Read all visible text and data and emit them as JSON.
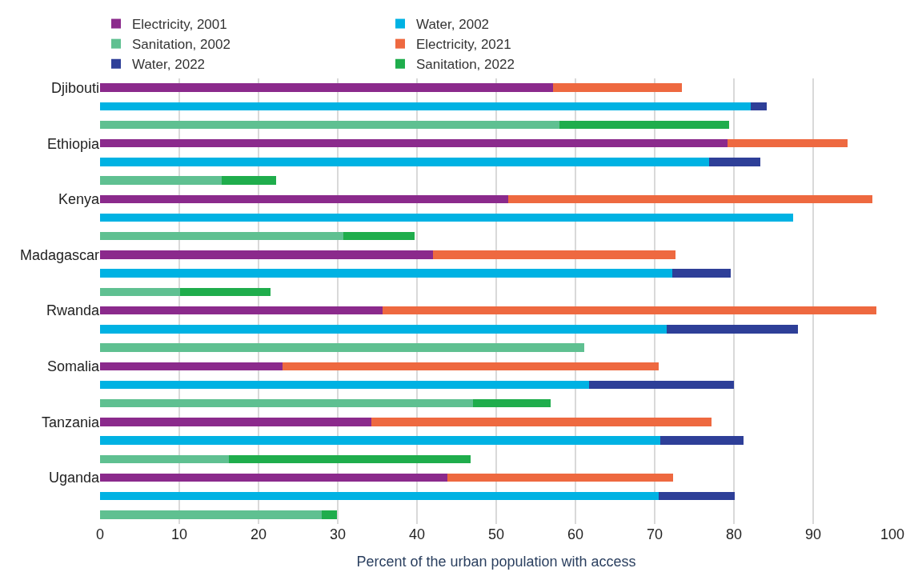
{
  "chart_data": {
    "type": "bar",
    "orientation": "horizontal",
    "stacked": true,
    "xlabel": "Percent of the urban population with access",
    "categories": [
      "Djibouti",
      null,
      null,
      "Ethiopia",
      null,
      null,
      "Kenya",
      null,
      null,
      "Madagascar",
      null,
      null,
      "Rwanda",
      null,
      null,
      "Somalia",
      null,
      null,
      "Tanzania",
      null,
      null,
      "Uganda",
      null,
      null
    ],
    "series": [
      {
        "name": "Electricity, 2001",
        "color": "#8b2a8c",
        "values": [
          57.2,
          null,
          null,
          79.2,
          null,
          null,
          51.5,
          null,
          null,
          42.0,
          null,
          null,
          35.7,
          null,
          null,
          23.0,
          null,
          null,
          34.2,
          null,
          null,
          43.8,
          null,
          null
        ]
      },
      {
        "name": "Electricity, 2021",
        "color": "#ee6940",
        "values": [
          16.2,
          null,
          null,
          15.1,
          null,
          null,
          46.0,
          null,
          null,
          30.6,
          null,
          null,
          62.3,
          null,
          null,
          47.5,
          null,
          null,
          43.0,
          null,
          null,
          28.5,
          null,
          null
        ]
      },
      {
        "name": "Water, 2002",
        "color": "#00b2e3",
        "values": [
          null,
          82.1,
          null,
          null,
          76.9,
          null,
          null,
          87.5,
          null,
          null,
          72.2,
          null,
          null,
          71.5,
          null,
          null,
          61.7,
          null,
          null,
          70.7,
          null,
          null,
          70.5,
          null
        ]
      },
      {
        "name": "Water, 2022",
        "color": "#2e3f98",
        "values": [
          null,
          2.0,
          null,
          null,
          6.4,
          null,
          null,
          null,
          null,
          null,
          7.4,
          null,
          null,
          16.6,
          null,
          null,
          18.3,
          null,
          null,
          10.5,
          null,
          null,
          9.6,
          null
        ]
      },
      {
        "name": "Sanitation, 2002",
        "color": "#5fc091",
        "values": [
          null,
          null,
          58.0,
          null,
          null,
          15.4,
          null,
          null,
          30.7,
          null,
          null,
          10.1,
          null,
          null,
          61.1,
          null,
          null,
          47.1,
          null,
          null,
          16.3,
          null,
          null,
          28.0
        ]
      },
      {
        "name": "Sanitation, 2022",
        "color": "#1fad4c",
        "values": [
          null,
          null,
          21.4,
          null,
          null,
          6.8,
          null,
          null,
          9.0,
          null,
          null,
          11.4,
          null,
          null,
          null,
          null,
          null,
          9.8,
          null,
          null,
          30.5,
          null,
          null,
          1.9
        ]
      }
    ],
    "xlim": [
      0,
      100
    ],
    "xticks": [
      0,
      10,
      20,
      30,
      40,
      50,
      60,
      70,
      80,
      90,
      100
    ],
    "grid": "x",
    "legend": "top left"
  }
}
